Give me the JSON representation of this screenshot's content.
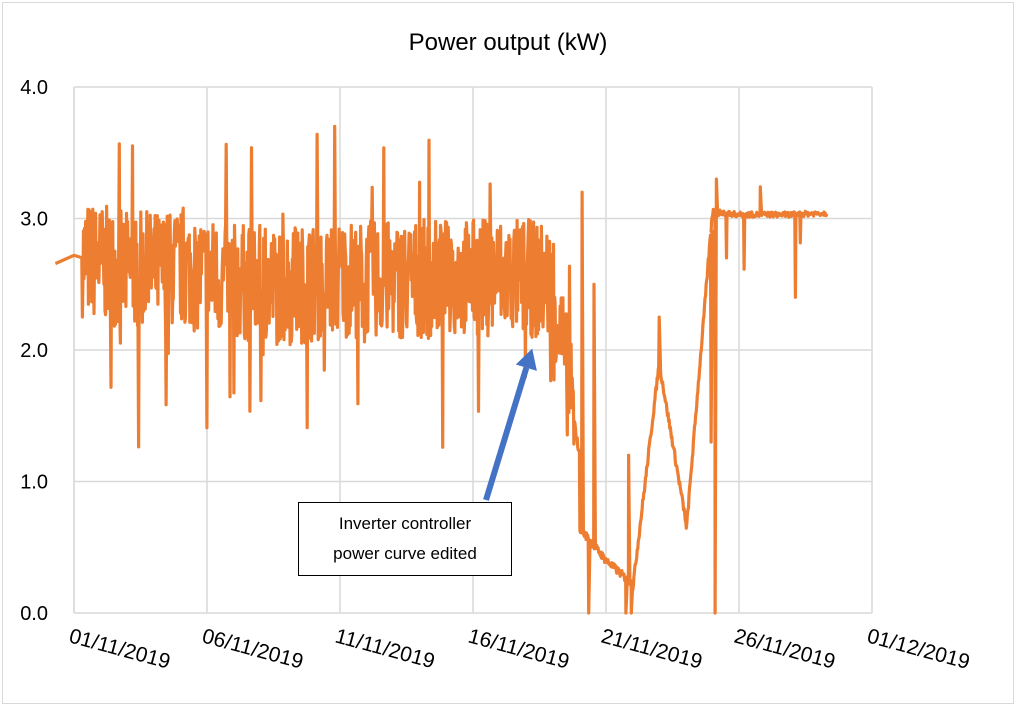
{
  "chart_data": {
    "type": "line",
    "title": "Power output (kW)",
    "xlabel": "",
    "ylabel": "",
    "ylim": [
      0,
      4
    ],
    "yticks": [
      "0.0",
      "1.0",
      "2.0",
      "3.0",
      "4.0"
    ],
    "xticks": [
      "01/11/2019",
      "06/11/2019",
      "11/11/2019",
      "16/11/2019",
      "21/11/2019",
      "26/11/2019",
      "01/12/2019"
    ],
    "xlim": [
      "01/11/2019",
      "01/12/2019"
    ],
    "grid": true,
    "legend": "none",
    "series": [
      {
        "color": "#ed7d31",
        "points": [
          [
            "31/10/2019",
            2.63
          ],
          [
            "01/11/2019",
            2.72
          ],
          [
            "03/11/2019",
            2.6
          ],
          [
            "05/11/2019",
            2.62
          ],
          [
            "07/11/2019",
            2.52
          ],
          [
            "09/11/2019",
            2.48
          ],
          [
            "11/11/2019",
            2.55
          ],
          [
            "13/11/2019",
            2.53
          ],
          [
            "15/11/2019",
            2.55
          ],
          [
            "17/11/2019",
            2.56
          ],
          [
            "18/11/2019",
            2.55
          ],
          [
            "19/11/2019",
            2.5
          ],
          [
            "20/11/2019",
            1.2
          ],
          [
            "20/11/2019",
            0.65
          ],
          [
            "21/11/2019",
            0.4
          ],
          [
            "22/11/2019",
            0.22
          ],
          [
            "22/11/2019",
            0.18
          ],
          [
            "23/11/2019",
            1.9
          ],
          [
            "24/11/2019",
            0.7
          ],
          [
            "24/11/2019",
            0.58
          ],
          [
            "25/11/2019",
            3.05
          ],
          [
            "26/11/2019",
            3.03
          ],
          [
            "27/11/2019",
            3.03
          ],
          [
            "28/11/2019",
            3.03
          ],
          [
            "29/11/2019",
            3.04
          ]
        ]
      }
    ],
    "annotations": [
      {
        "text_line1": "Inverter controller",
        "text_line2": "power curve edited",
        "points_to": [
          "18/11/2019",
          1.95
        ],
        "arrow_color": "#4472c4"
      }
    ]
  }
}
